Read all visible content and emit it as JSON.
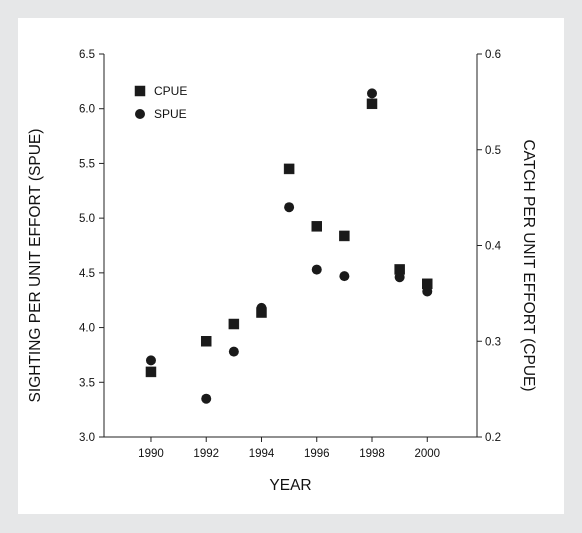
{
  "chart_data": {
    "type": "scatter",
    "title": "",
    "xlabel": "YEAR",
    "ylabel_left": "SIGHTING PER UNIT EFFORT (SPUE)",
    "ylabel_right": "CATCH PER UNIT EFFORT (CPUE)",
    "xlim": [
      1988.3,
      2001.8
    ],
    "ylim_left": [
      3.0,
      6.5
    ],
    "ylim_right": [
      0.2,
      0.6
    ],
    "x_ticks": [
      1990,
      1992,
      1994,
      1996,
      1998,
      2000
    ],
    "y_left_ticks": [
      "3.0",
      "3.5",
      "4.0",
      "4.5",
      "5.0",
      "5.5",
      "6.0",
      "6.5"
    ],
    "y_right_ticks": [
      "0.2",
      "0.3",
      "0.4",
      "0.5",
      "0.6"
    ],
    "grid": false,
    "legend_position": "top-left",
    "series": [
      {
        "name": "CPUE",
        "marker": "square",
        "axis": "right",
        "color": "#1a1a1a",
        "x": [
          1990,
          1992,
          1993,
          1994,
          1995,
          1996,
          1997,
          1998,
          1999,
          2000
        ],
        "y": [
          0.268,
          0.3,
          0.318,
          0.33,
          0.48,
          0.42,
          0.41,
          0.548,
          0.375,
          0.36
        ]
      },
      {
        "name": "SPUE",
        "marker": "circle",
        "axis": "left",
        "color": "#1a1a1a",
        "x": [
          1990,
          1992,
          1993,
          1994,
          1995,
          1996,
          1997,
          1998,
          1999,
          2000
        ],
        "y": [
          3.7,
          3.35,
          3.78,
          4.18,
          5.1,
          4.53,
          4.47,
          6.14,
          4.46,
          4.33
        ]
      }
    ]
  }
}
